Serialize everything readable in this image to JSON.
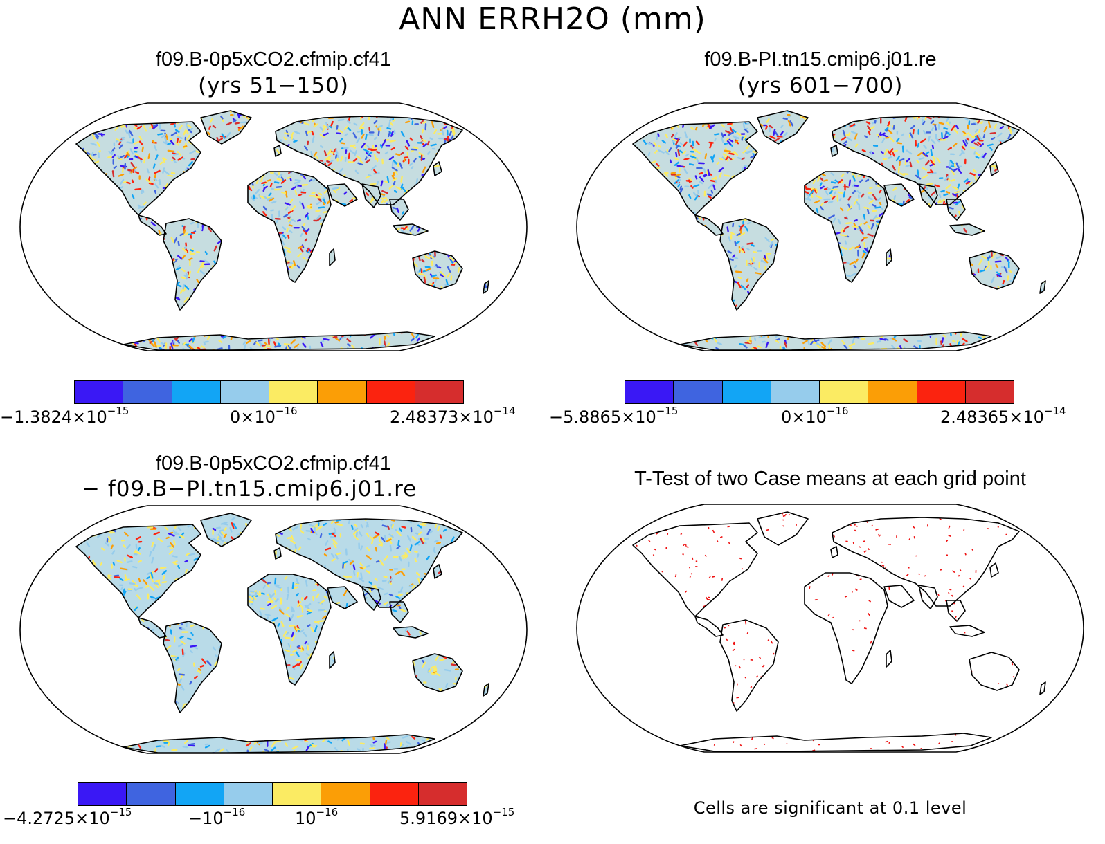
{
  "figure": {
    "title": "ANN ERRH2O (mm)"
  },
  "panels": [
    {
      "id": "case1",
      "title": "f09.B-0p5xCO2.cfmip.cf41",
      "subtitle": "(yrs 51−150)",
      "colorbar": {
        "labels": [
          {
            "mant": "−1.3824×10",
            "exp": "−15"
          },
          {
            "mant": "0×10",
            "exp": "−16"
          },
          {
            "mant": "2.48373×10",
            "exp": "−14"
          }
        ]
      }
    },
    {
      "id": "case2",
      "title": "f09.B-PI.tn15.cmip6.j01.re",
      "subtitle": "(yrs 601−700)",
      "colorbar": {
        "labels": [
          {
            "mant": "−5.8865×10",
            "exp": "−15"
          },
          {
            "mant": "0×10",
            "exp": "−16"
          },
          {
            "mant": "2.48365×10",
            "exp": "−14"
          }
        ]
      }
    },
    {
      "id": "difference",
      "title": "f09.B-0p5xCO2.cfmip.cf41",
      "subtitle": "− f09.B−PI.tn15.cmip6.j01.re",
      "colorbar": {
        "labels": [
          {
            "mant": "−4.2725×10",
            "exp": "−15"
          },
          {
            "mant": "−10",
            "exp": "−16"
          },
          {
            "mant": "10",
            "exp": "−16"
          },
          {
            "mant": "5.9169×10",
            "exp": "−15"
          }
        ]
      }
    },
    {
      "id": "ttest",
      "title": "T-Test of two Case means at each grid point",
      "footnote": "Cells are significant at 0.1 level"
    }
  ],
  "colors": {
    "palette": [
      "#3a18f5",
      "#3f64e0",
      "#12a5f5",
      "#96ccec",
      "#fbeb63",
      "#fb9e06",
      "#fb230f",
      "#d62d2d"
    ],
    "significant": "#ee1111",
    "coast": "#000000",
    "ocean": "#ffffff"
  }
}
